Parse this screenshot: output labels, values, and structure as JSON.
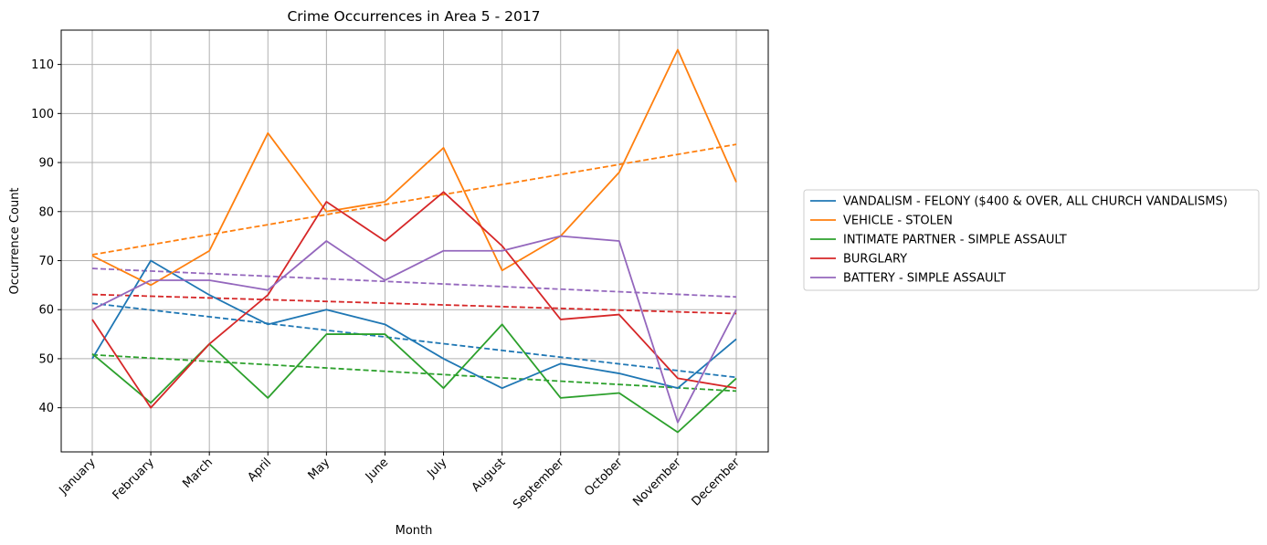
{
  "chart_data": {
    "type": "line",
    "title": "Crime Occurrences in Area 5 - 2017",
    "xlabel": "Month",
    "ylabel": "Occurrence Count",
    "categories": [
      "January",
      "February",
      "March",
      "April",
      "May",
      "June",
      "July",
      "August",
      "September",
      "October",
      "November",
      "December"
    ],
    "ylim": [
      31,
      117
    ],
    "yticks": [
      40,
      50,
      60,
      70,
      80,
      90,
      100,
      110
    ],
    "grid": true,
    "legend_position": "right",
    "series": [
      {
        "name": "VANDALISM - FELONY ($400 & OVER, ALL CHURCH VANDALISMS)",
        "color": "#1f77b4",
        "values": [
          50,
          70,
          63,
          57,
          60,
          57,
          50,
          44,
          49,
          47,
          44,
          54
        ],
        "trend": [
          61.3,
          46.2
        ]
      },
      {
        "name": "VEHICLE - STOLEN",
        "color": "#ff7f0e",
        "values": [
          71,
          65,
          72,
          96,
          80,
          82,
          93,
          68,
          75,
          88,
          113,
          86
        ],
        "trend": [
          71.2,
          93.7
        ]
      },
      {
        "name": "INTIMATE PARTNER - SIMPLE ASSAULT",
        "color": "#2ca02c",
        "values": [
          51,
          41,
          53,
          42,
          55,
          55,
          44,
          57,
          42,
          43,
          35,
          46
        ],
        "trend": [
          50.8,
          43.4
        ]
      },
      {
        "name": "BURGLARY",
        "color": "#d62728",
        "values": [
          58,
          40,
          53,
          63,
          82,
          74,
          84,
          73,
          58,
          59,
          46,
          44
        ],
        "trend": [
          63.1,
          59.2
        ]
      },
      {
        "name": "BATTERY - SIMPLE ASSAULT",
        "color": "#9467bd",
        "values": [
          60,
          66,
          66,
          64,
          74,
          66,
          72,
          72,
          75,
          74,
          37,
          60
        ],
        "trend": [
          68.4,
          62.6
        ]
      }
    ]
  }
}
